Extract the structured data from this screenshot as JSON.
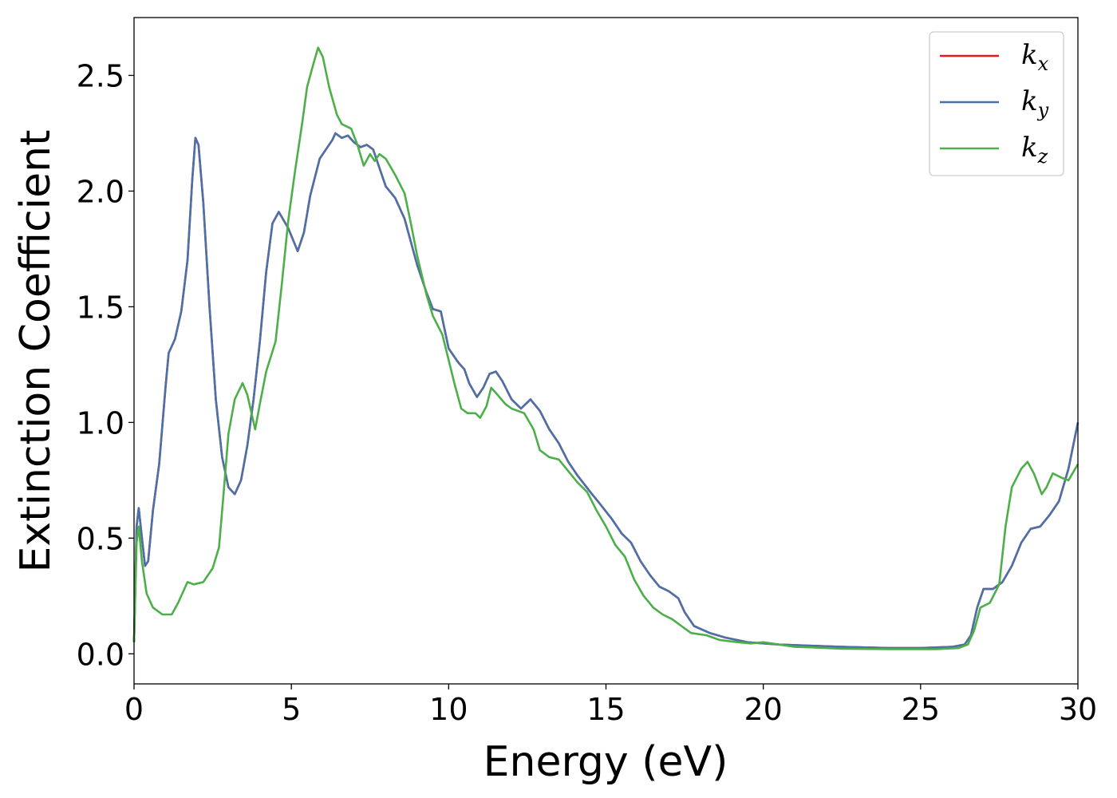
{
  "chart_data": {
    "type": "line",
    "xlabel": "Energy (eV)",
    "ylabel": "Extinction Coefficient",
    "xlim": [
      0,
      30
    ],
    "ylim": [
      -0.13,
      2.75
    ],
    "xticks": [
      0,
      5,
      10,
      15,
      20,
      25,
      30
    ],
    "xtick_labels": [
      "0",
      "5",
      "10",
      "15",
      "20",
      "25",
      "30"
    ],
    "yticks": [
      0.0,
      0.5,
      1.0,
      1.5,
      2.0,
      2.5
    ],
    "ytick_labels": [
      "0.0",
      "0.5",
      "1.0",
      "1.5",
      "2.0",
      "2.5"
    ],
    "grid": false,
    "legend_position": "top-right",
    "series": [
      {
        "name": "k",
        "subscript": "x",
        "color": "#e41a1c",
        "points": [
          [
            0,
            0.05
          ],
          [
            0.08,
            0.55
          ],
          [
            0.15,
            0.63
          ],
          [
            0.25,
            0.5
          ],
          [
            0.35,
            0.38
          ],
          [
            0.45,
            0.4
          ],
          [
            0.6,
            0.62
          ],
          [
            0.8,
            0.82
          ],
          [
            1.0,
            1.15
          ],
          [
            1.1,
            1.3
          ],
          [
            1.3,
            1.36
          ],
          [
            1.5,
            1.48
          ],
          [
            1.7,
            1.7
          ],
          [
            1.85,
            2.05
          ],
          [
            1.95,
            2.23
          ],
          [
            2.05,
            2.2
          ],
          [
            2.2,
            1.95
          ],
          [
            2.4,
            1.5
          ],
          [
            2.6,
            1.1
          ],
          [
            2.8,
            0.85
          ],
          [
            3.0,
            0.72
          ],
          [
            3.2,
            0.69
          ],
          [
            3.4,
            0.75
          ],
          [
            3.6,
            0.9
          ],
          [
            3.8,
            1.1
          ],
          [
            4.0,
            1.35
          ],
          [
            4.2,
            1.65
          ],
          [
            4.4,
            1.86
          ],
          [
            4.6,
            1.91
          ],
          [
            4.9,
            1.84
          ],
          [
            5.2,
            1.74
          ],
          [
            5.4,
            1.82
          ],
          [
            5.6,
            1.98
          ],
          [
            5.9,
            2.14
          ],
          [
            6.1,
            2.18
          ],
          [
            6.3,
            2.22
          ],
          [
            6.4,
            2.25
          ],
          [
            6.6,
            2.23
          ],
          [
            6.8,
            2.24
          ],
          [
            7.0,
            2.21
          ],
          [
            7.2,
            2.19
          ],
          [
            7.4,
            2.2
          ],
          [
            7.6,
            2.18
          ],
          [
            7.8,
            2.1
          ],
          [
            8.0,
            2.02
          ],
          [
            8.3,
            1.97
          ],
          [
            8.6,
            1.88
          ],
          [
            9.0,
            1.68
          ],
          [
            9.3,
            1.56
          ],
          [
            9.5,
            1.49
          ],
          [
            9.75,
            1.48
          ],
          [
            10.0,
            1.32
          ],
          [
            10.3,
            1.26
          ],
          [
            10.5,
            1.23
          ],
          [
            10.65,
            1.17
          ],
          [
            10.9,
            1.11
          ],
          [
            11.1,
            1.15
          ],
          [
            11.3,
            1.21
          ],
          [
            11.5,
            1.22
          ],
          [
            11.7,
            1.18
          ],
          [
            12.0,
            1.1
          ],
          [
            12.3,
            1.06
          ],
          [
            12.6,
            1.1
          ],
          [
            12.9,
            1.05
          ],
          [
            13.2,
            0.97
          ],
          [
            13.5,
            0.91
          ],
          [
            13.8,
            0.83
          ],
          [
            14.1,
            0.77
          ],
          [
            14.5,
            0.7
          ],
          [
            14.8,
            0.65
          ],
          [
            15.2,
            0.58
          ],
          [
            15.5,
            0.52
          ],
          [
            15.8,
            0.48
          ],
          [
            16.1,
            0.4
          ],
          [
            16.4,
            0.34
          ],
          [
            16.7,
            0.29
          ],
          [
            17.0,
            0.27
          ],
          [
            17.3,
            0.24
          ],
          [
            17.5,
            0.18
          ],
          [
            17.8,
            0.12
          ],
          [
            18.3,
            0.09
          ],
          [
            18.8,
            0.07
          ],
          [
            19.5,
            0.05
          ],
          [
            20.5,
            0.04
          ],
          [
            21.5,
            0.035
          ],
          [
            22.5,
            0.03
          ],
          [
            24,
            0.025
          ],
          [
            25,
            0.025
          ],
          [
            26,
            0.03
          ],
          [
            26.4,
            0.04
          ],
          [
            26.6,
            0.08
          ],
          [
            26.8,
            0.2
          ],
          [
            27.0,
            0.28
          ],
          [
            27.3,
            0.28
          ],
          [
            27.6,
            0.31
          ],
          [
            27.9,
            0.38
          ],
          [
            28.2,
            0.48
          ],
          [
            28.5,
            0.54
          ],
          [
            28.8,
            0.55
          ],
          [
            29.1,
            0.6
          ],
          [
            29.4,
            0.66
          ],
          [
            29.7,
            0.8
          ],
          [
            30.0,
            1.0
          ]
        ]
      },
      {
        "name": "k",
        "subscript": "y",
        "color": "#4a72a8",
        "points": [
          [
            0,
            0.05
          ],
          [
            0.08,
            0.55
          ],
          [
            0.15,
            0.63
          ],
          [
            0.25,
            0.5
          ],
          [
            0.35,
            0.38
          ],
          [
            0.45,
            0.4
          ],
          [
            0.6,
            0.62
          ],
          [
            0.8,
            0.82
          ],
          [
            1.0,
            1.15
          ],
          [
            1.1,
            1.3
          ],
          [
            1.3,
            1.36
          ],
          [
            1.5,
            1.48
          ],
          [
            1.7,
            1.7
          ],
          [
            1.85,
            2.05
          ],
          [
            1.95,
            2.23
          ],
          [
            2.05,
            2.2
          ],
          [
            2.2,
            1.95
          ],
          [
            2.4,
            1.5
          ],
          [
            2.6,
            1.1
          ],
          [
            2.8,
            0.85
          ],
          [
            3.0,
            0.72
          ],
          [
            3.2,
            0.69
          ],
          [
            3.4,
            0.75
          ],
          [
            3.6,
            0.9
          ],
          [
            3.8,
            1.1
          ],
          [
            4.0,
            1.35
          ],
          [
            4.2,
            1.65
          ],
          [
            4.4,
            1.86
          ],
          [
            4.6,
            1.91
          ],
          [
            4.9,
            1.84
          ],
          [
            5.2,
            1.74
          ],
          [
            5.4,
            1.82
          ],
          [
            5.6,
            1.98
          ],
          [
            5.9,
            2.14
          ],
          [
            6.1,
            2.18
          ],
          [
            6.3,
            2.22
          ],
          [
            6.4,
            2.25
          ],
          [
            6.6,
            2.23
          ],
          [
            6.8,
            2.24
          ],
          [
            7.0,
            2.21
          ],
          [
            7.2,
            2.19
          ],
          [
            7.4,
            2.2
          ],
          [
            7.6,
            2.18
          ],
          [
            7.8,
            2.1
          ],
          [
            8.0,
            2.02
          ],
          [
            8.3,
            1.97
          ],
          [
            8.6,
            1.88
          ],
          [
            9.0,
            1.68
          ],
          [
            9.3,
            1.56
          ],
          [
            9.5,
            1.49
          ],
          [
            9.75,
            1.48
          ],
          [
            10.0,
            1.32
          ],
          [
            10.3,
            1.26
          ],
          [
            10.5,
            1.23
          ],
          [
            10.65,
            1.17
          ],
          [
            10.9,
            1.11
          ],
          [
            11.1,
            1.15
          ],
          [
            11.3,
            1.21
          ],
          [
            11.5,
            1.22
          ],
          [
            11.7,
            1.18
          ],
          [
            12.0,
            1.1
          ],
          [
            12.3,
            1.06
          ],
          [
            12.6,
            1.1
          ],
          [
            12.9,
            1.05
          ],
          [
            13.2,
            0.97
          ],
          [
            13.5,
            0.91
          ],
          [
            13.8,
            0.83
          ],
          [
            14.1,
            0.77
          ],
          [
            14.5,
            0.7
          ],
          [
            14.8,
            0.65
          ],
          [
            15.2,
            0.58
          ],
          [
            15.5,
            0.52
          ],
          [
            15.8,
            0.48
          ],
          [
            16.1,
            0.4
          ],
          [
            16.4,
            0.34
          ],
          [
            16.7,
            0.29
          ],
          [
            17.0,
            0.27
          ],
          [
            17.3,
            0.24
          ],
          [
            17.5,
            0.18
          ],
          [
            17.8,
            0.12
          ],
          [
            18.3,
            0.09
          ],
          [
            18.8,
            0.07
          ],
          [
            19.5,
            0.05
          ],
          [
            20.5,
            0.04
          ],
          [
            21.5,
            0.035
          ],
          [
            22.5,
            0.03
          ],
          [
            24,
            0.025
          ],
          [
            25,
            0.025
          ],
          [
            26,
            0.03
          ],
          [
            26.4,
            0.04
          ],
          [
            26.6,
            0.08
          ],
          [
            26.8,
            0.2
          ],
          [
            27.0,
            0.28
          ],
          [
            27.3,
            0.28
          ],
          [
            27.6,
            0.31
          ],
          [
            27.9,
            0.38
          ],
          [
            28.2,
            0.48
          ],
          [
            28.5,
            0.54
          ],
          [
            28.8,
            0.55
          ],
          [
            29.1,
            0.6
          ],
          [
            29.4,
            0.66
          ],
          [
            29.7,
            0.8
          ],
          [
            30.0,
            1.0
          ]
        ]
      },
      {
        "name": "k",
        "subscript": "z",
        "color": "#4daf4a",
        "points": [
          [
            0,
            0.05
          ],
          [
            0.08,
            0.48
          ],
          [
            0.15,
            0.55
          ],
          [
            0.25,
            0.4
          ],
          [
            0.4,
            0.26
          ],
          [
            0.6,
            0.2
          ],
          [
            0.9,
            0.17
          ],
          [
            1.2,
            0.17
          ],
          [
            1.4,
            0.22
          ],
          [
            1.7,
            0.31
          ],
          [
            1.9,
            0.3
          ],
          [
            2.2,
            0.31
          ],
          [
            2.5,
            0.37
          ],
          [
            2.7,
            0.46
          ],
          [
            2.85,
            0.7
          ],
          [
            3.0,
            0.95
          ],
          [
            3.2,
            1.1
          ],
          [
            3.45,
            1.17
          ],
          [
            3.6,
            1.12
          ],
          [
            3.85,
            0.97
          ],
          [
            4.0,
            1.08
          ],
          [
            4.2,
            1.22
          ],
          [
            4.5,
            1.35
          ],
          [
            4.7,
            1.6
          ],
          [
            4.9,
            1.87
          ],
          [
            5.1,
            2.07
          ],
          [
            5.35,
            2.3
          ],
          [
            5.5,
            2.45
          ],
          [
            5.7,
            2.55
          ],
          [
            5.85,
            2.62
          ],
          [
            6.0,
            2.58
          ],
          [
            6.2,
            2.45
          ],
          [
            6.45,
            2.33
          ],
          [
            6.6,
            2.29
          ],
          [
            6.9,
            2.27
          ],
          [
            7.1,
            2.2
          ],
          [
            7.3,
            2.11
          ],
          [
            7.5,
            2.16
          ],
          [
            7.65,
            2.13
          ],
          [
            7.8,
            2.16
          ],
          [
            8.0,
            2.14
          ],
          [
            8.3,
            2.07
          ],
          [
            8.6,
            1.99
          ],
          [
            8.8,
            1.86
          ],
          [
            9.0,
            1.72
          ],
          [
            9.3,
            1.55
          ],
          [
            9.5,
            1.46
          ],
          [
            9.8,
            1.38
          ],
          [
            10.0,
            1.27
          ],
          [
            10.2,
            1.16
          ],
          [
            10.4,
            1.06
          ],
          [
            10.6,
            1.04
          ],
          [
            10.85,
            1.04
          ],
          [
            11.0,
            1.02
          ],
          [
            11.2,
            1.07
          ],
          [
            11.35,
            1.15
          ],
          [
            11.55,
            1.12
          ],
          [
            11.8,
            1.08
          ],
          [
            12.0,
            1.06
          ],
          [
            12.4,
            1.04
          ],
          [
            12.7,
            0.97
          ],
          [
            12.9,
            0.88
          ],
          [
            13.2,
            0.85
          ],
          [
            13.5,
            0.84
          ],
          [
            13.8,
            0.79
          ],
          [
            14.1,
            0.74
          ],
          [
            14.4,
            0.7
          ],
          [
            14.7,
            0.62
          ],
          [
            15.0,
            0.55
          ],
          [
            15.3,
            0.47
          ],
          [
            15.6,
            0.42
          ],
          [
            15.9,
            0.32
          ],
          [
            16.2,
            0.25
          ],
          [
            16.5,
            0.2
          ],
          [
            16.8,
            0.17
          ],
          [
            17.1,
            0.15
          ],
          [
            17.4,
            0.12
          ],
          [
            17.7,
            0.09
          ],
          [
            18.2,
            0.08
          ],
          [
            18.6,
            0.06
          ],
          [
            19.2,
            0.05
          ],
          [
            19.6,
            0.045
          ],
          [
            20.0,
            0.05
          ],
          [
            20.5,
            0.04
          ],
          [
            21.0,
            0.03
          ],
          [
            21.5,
            0.028
          ],
          [
            22.5,
            0.022
          ],
          [
            24.0,
            0.02
          ],
          [
            25.5,
            0.02
          ],
          [
            26.2,
            0.025
          ],
          [
            26.5,
            0.04
          ],
          [
            26.7,
            0.1
          ],
          [
            26.9,
            0.2
          ],
          [
            27.2,
            0.22
          ],
          [
            27.5,
            0.3
          ],
          [
            27.7,
            0.55
          ],
          [
            27.9,
            0.72
          ],
          [
            28.2,
            0.8
          ],
          [
            28.4,
            0.83
          ],
          [
            28.6,
            0.78
          ],
          [
            28.85,
            0.69
          ],
          [
            29.0,
            0.72
          ],
          [
            29.2,
            0.78
          ],
          [
            29.5,
            0.76
          ],
          [
            29.7,
            0.75
          ],
          [
            30.0,
            0.82
          ]
        ]
      }
    ]
  }
}
